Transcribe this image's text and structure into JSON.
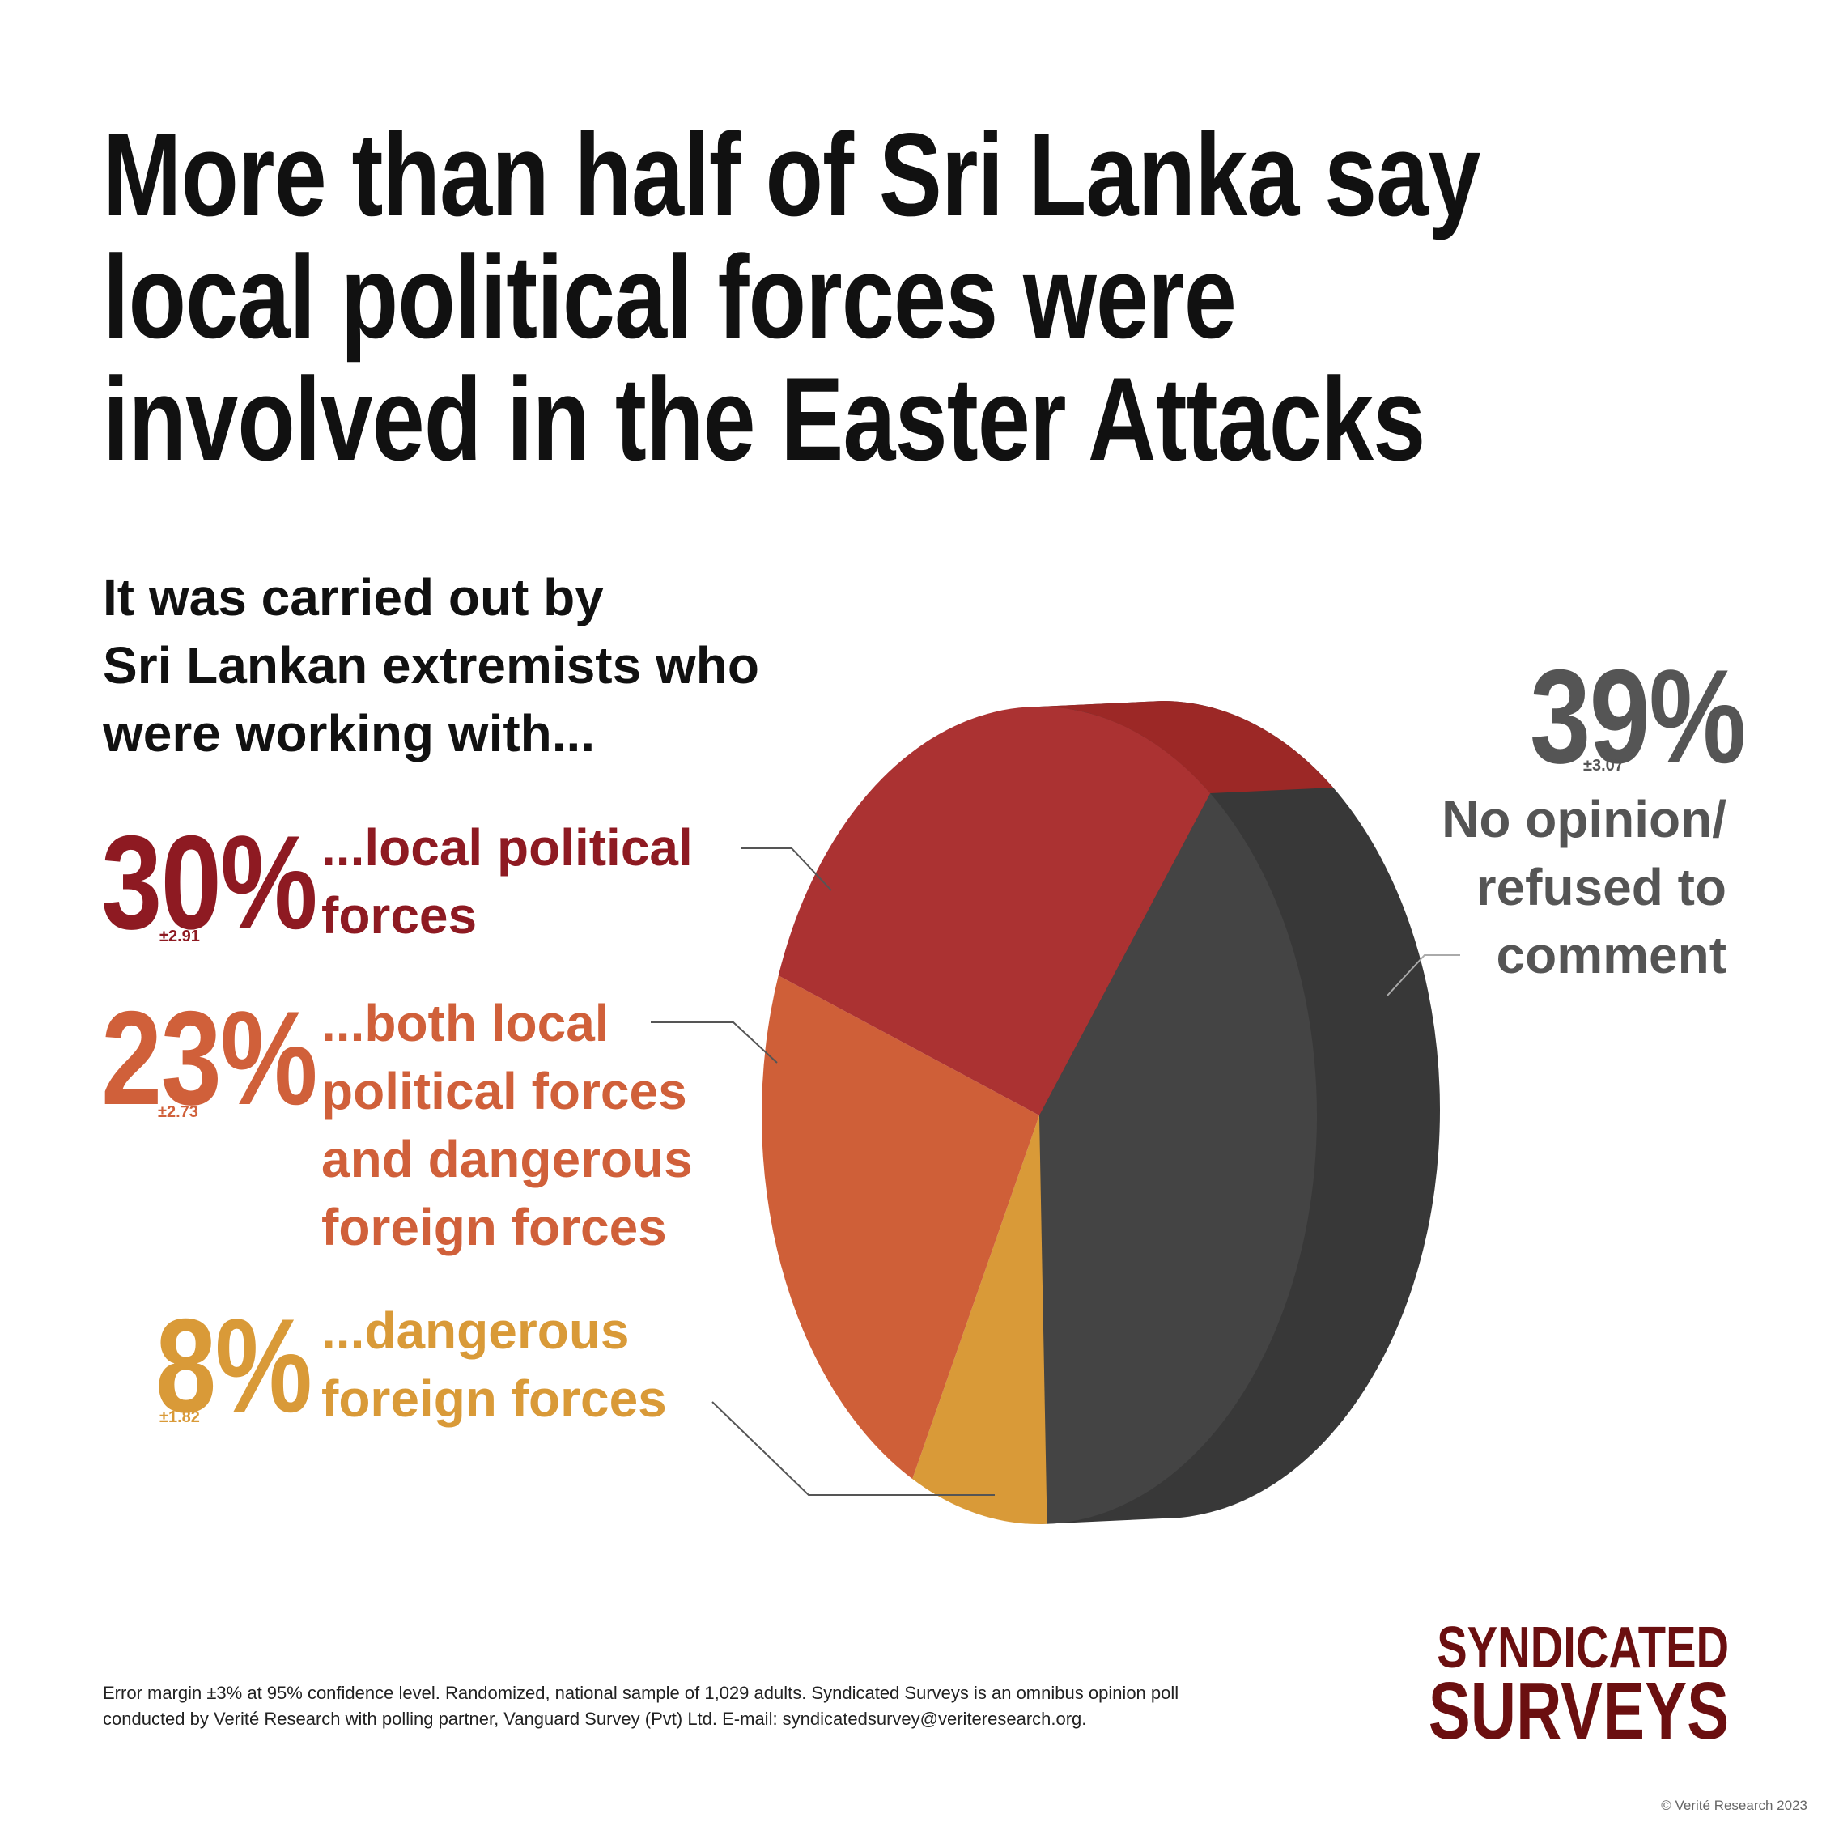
{
  "title_lines": [
    "More than half of Sri Lanka say",
    "local political forces were",
    "involved in the Easter Attacks"
  ],
  "subtitle_lines": [
    "It was carried out by",
    "Sri Lankan extremists who",
    "were working with..."
  ],
  "chart_data": {
    "type": "pie",
    "title": "More than half of Sri Lanka say local political forces were involved in the Easter Attacks",
    "slices": [
      {
        "label": "...local political forces",
        "value": 30,
        "display": "30%",
        "margin": "±2.91",
        "label_lines": [
          "...local political",
          "forces"
        ],
        "color": "#ab3232"
      },
      {
        "label": "...both local political forces and dangerous foreign forces",
        "value": 23,
        "display": "23%",
        "margin": "±2.73",
        "label_lines": [
          "...both local",
          "political forces",
          "and dangerous",
          "foreign forces"
        ],
        "color": "#cf5f38"
      },
      {
        "label": "...dangerous foreign forces",
        "value": 8,
        "display": "8%",
        "margin": "±1.82",
        "label_lines": [
          "...dangerous",
          "foreign forces"
        ],
        "color": "#d99a38"
      },
      {
        "label": "No opinion/ refused to comment",
        "value": 39,
        "display": "39%",
        "margin": "±3.07",
        "label_lines": [
          "No opinion/",
          "refused to",
          "comment"
        ],
        "color": "#444444"
      }
    ],
    "text_colors": [
      "#8e1a22",
      "#d0603a",
      "#d99a38",
      "#555555"
    ]
  },
  "footer_lines": [
    "Error margin ±3% at 95% confidence level. Randomized, national sample of 1,029 adults. Syndicated Surveys is an omnibus opinion poll",
    "conducted by Verité Research with polling partner, Vanguard Survey (Pvt) Ltd. E-mail: syndicatedsurvey@veriteresearch.org."
  ],
  "logo_lines": [
    "SYNDICATED",
    "SURVEYS"
  ],
  "copyright": "© Verité Research 2023"
}
